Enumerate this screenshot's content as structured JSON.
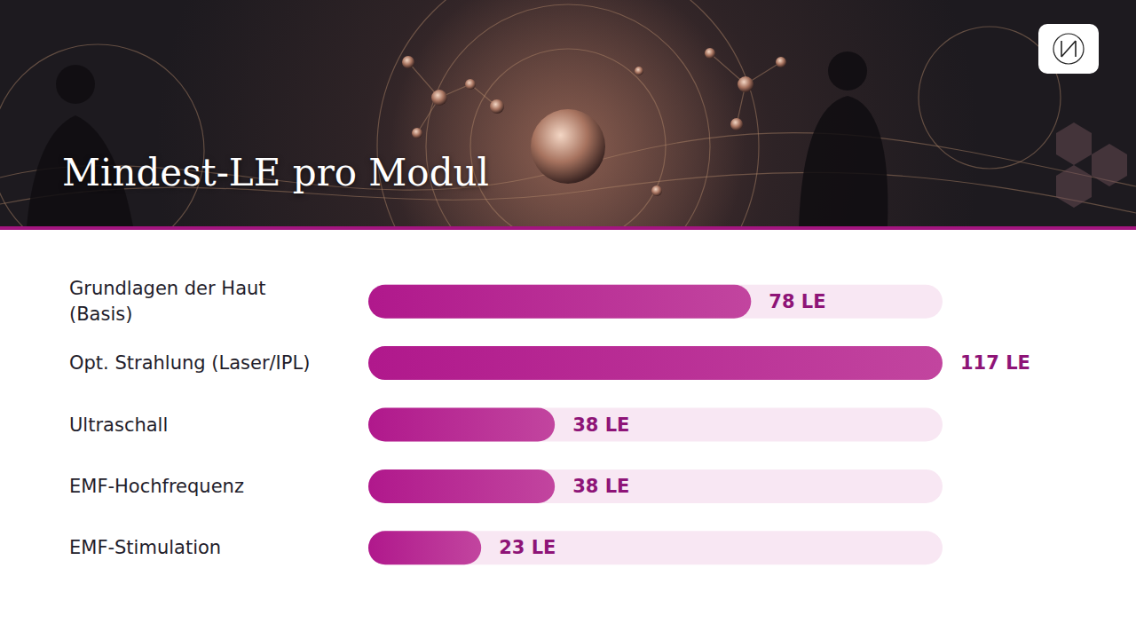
{
  "chart_data": {
    "type": "bar",
    "title": "Mindest-LE pro Modul",
    "orientation": "horizontal",
    "categories": [
      "Grundlagen der Haut\n(Basis)",
      "Opt. Strahlung (Laser/IPL)",
      "Ultraschall",
      "EMF-Hochfrequenz",
      "EMF-Stimulation"
    ],
    "values": [
      78,
      117,
      38,
      38,
      23
    ],
    "value_labels": [
      "78 LE",
      "117 LE",
      "38 LE",
      "38 LE",
      "23 LE"
    ],
    "color": "#b0188c",
    "xlim": [
      0,
      117
    ],
    "grid": false,
    "data_labels": true,
    "tick_labels": false
  }
}
